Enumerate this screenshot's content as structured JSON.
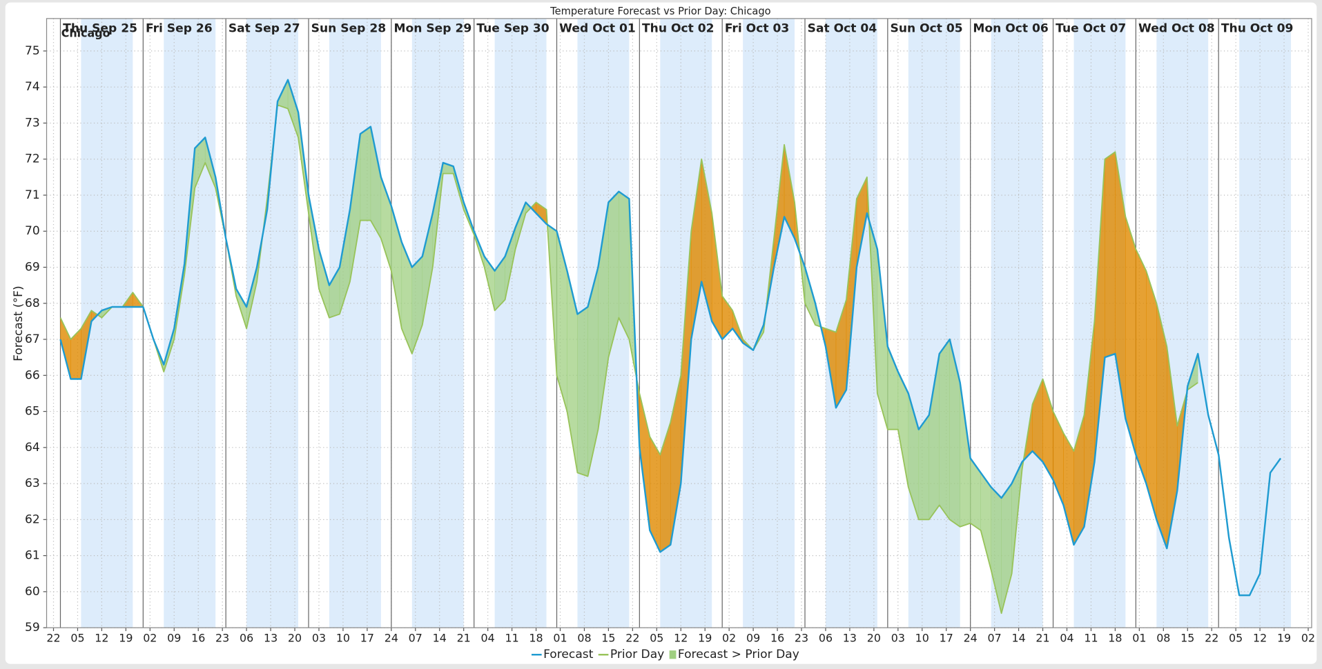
{
  "chart_data": {
    "type": "line",
    "title": "Temperature Forecast vs Prior Day: Chicago",
    "annotation": "Chicago",
    "ylabel": "Forecast (°F)",
    "x": [
      0,
      3,
      6,
      9,
      12,
      15,
      18,
      21,
      24,
      27,
      30,
      33,
      36,
      39,
      42,
      45,
      48,
      51,
      54,
      57,
      60,
      63,
      66,
      69,
      72,
      75,
      78,
      81,
      84,
      87,
      90,
      93,
      96,
      99,
      102,
      105,
      108,
      111,
      114,
      117,
      120,
      123,
      126,
      129,
      132,
      135,
      138,
      141,
      144,
      147,
      150,
      153,
      156,
      159,
      162,
      165,
      168,
      171,
      174,
      177,
      180,
      183,
      186,
      189,
      192,
      195,
      198,
      201,
      204,
      207,
      210,
      213,
      216,
      219,
      222,
      225,
      228,
      231,
      234,
      237,
      240,
      243,
      246,
      249,
      252,
      255,
      258,
      261,
      264,
      267,
      270,
      273,
      276,
      279,
      282,
      285,
      288,
      291,
      294,
      297,
      300,
      303,
      306,
      309,
      312,
      315,
      318,
      321,
      324,
      327,
      330,
      333,
      336,
      339,
      342,
      345,
      348,
      351,
      354
    ],
    "series": [
      {
        "name": "Forecast",
        "color": "#1f9bd1",
        "values": [
          67,
          65.9,
          65.9,
          67.5,
          67.8,
          67.9,
          67.9,
          67.9,
          67.9,
          67.0,
          66.3,
          67.3,
          69.1,
          72.3,
          72.6,
          71.5,
          69.8,
          68.4,
          67.9,
          69.0,
          70.6,
          73.6,
          74.2,
          73.3,
          71.0,
          69.5,
          68.5,
          69.0,
          70.6,
          72.7,
          72.9,
          71.5,
          70.7,
          69.7,
          69.0,
          69.3,
          70.5,
          71.9,
          71.8,
          70.8,
          70.0,
          69.3,
          68.9,
          69.3,
          70.1,
          70.8,
          70.5,
          70.2,
          70.0,
          68.9,
          67.7,
          67.9,
          69.0,
          70.8,
          71.1,
          70.9,
          64.0,
          61.7,
          61.1,
          61.3,
          63.0,
          67.0,
          68.6,
          67.5,
          67.0,
          67.3,
          66.9,
          66.7,
          67.4,
          69.0,
          70.4,
          69.8,
          69.0,
          68.0,
          66.8,
          65.1,
          65.6,
          69.0,
          70.5,
          69.5,
          66.8,
          66.1,
          65.5,
          64.5,
          64.9,
          66.6,
          67.0,
          65.8,
          63.7,
          63.3,
          62.9,
          62.6,
          63.0,
          63.6,
          63.9,
          63.6,
          63.1,
          62.4,
          61.3,
          61.8,
          63.6,
          66.5,
          66.6,
          64.8,
          63.8,
          63.0,
          62.0,
          61.2,
          62.8,
          65.7,
          66.6,
          64.9,
          63.8,
          61.5,
          59.9,
          59.9,
          60.5,
          63.3,
          63.7
        ]
      },
      {
        "name": "Prior Day",
        "color": "#98c35a",
        "values": [
          67.6,
          67.0,
          67.3,
          67.8,
          67.6,
          67.9,
          67.9,
          68.3,
          67.9,
          67.0,
          66.1,
          67.0,
          68.8,
          71.2,
          71.9,
          71.2,
          69.8,
          68.2,
          67.3,
          68.6,
          70.9,
          73.5,
          73.4,
          72.6,
          70.5,
          68.4,
          67.6,
          67.7,
          68.6,
          70.3,
          70.3,
          69.8,
          68.9,
          67.3,
          66.6,
          67.4,
          69.0,
          71.6,
          71.6,
          70.6,
          69.9,
          69.0,
          67.8,
          68.1,
          69.5,
          70.5,
          70.8,
          70.6,
          66.0,
          65.0,
          63.3,
          63.2,
          64.5,
          66.5,
          67.6,
          67.0,
          65.5,
          64.3,
          63.8,
          64.7,
          66.0,
          70.0,
          72.0,
          70.5,
          68.2,
          67.8,
          67.0,
          66.7,
          67.2,
          69.8,
          72.4,
          70.8,
          68.0,
          67.4,
          67.3,
          67.2,
          68.1,
          70.9,
          71.5,
          65.5,
          64.5,
          64.5,
          62.9,
          62.0,
          62.0,
          62.4,
          62.0,
          61.8,
          61.9,
          61.7,
          60.6,
          59.4,
          60.5,
          63.4,
          65.2,
          65.9,
          65.0,
          64.4,
          63.9,
          64.9,
          67.5,
          72.0,
          72.2,
          70.4,
          69.5,
          68.9,
          68.0,
          66.8,
          64.6,
          65.6,
          65.8,
          null,
          null,
          null,
          null,
          null,
          null,
          null,
          null
        ]
      }
    ],
    "fill": {
      "name": "Forecast > Prior Day",
      "color": "#9fcf80"
    },
    "below_fill_color": "#e08a00",
    "days": [
      {
        "label": "Thu Sep 25",
        "x": 0
      },
      {
        "label": "Fri Sep 26",
        "x": 24
      },
      {
        "label": "Sat Sep 27",
        "x": 48
      },
      {
        "label": "Sun Sep 28",
        "x": 72
      },
      {
        "label": "Mon Sep 29",
        "x": 96
      },
      {
        "label": "Tue Sep 30",
        "x": 120
      },
      {
        "label": "Wed Oct 01",
        "x": 144
      },
      {
        "label": "Thu Oct 02",
        "x": 168
      },
      {
        "label": "Fri Oct 03",
        "x": 192
      },
      {
        "label": "Sat Oct 04",
        "x": 216
      },
      {
        "label": "Sun Oct 05",
        "x": 240
      },
      {
        "label": "Mon Oct 06",
        "x": 264
      },
      {
        "label": "Tue Oct 07",
        "x": 288
      },
      {
        "label": "Wed Oct 08",
        "x": 312
      },
      {
        "label": "Thu Oct 09",
        "x": 336
      }
    ],
    "day_label_color": "#e8202a",
    "shaded_hours": [
      6,
      21
    ],
    "shade_color": "#ddecfb",
    "xlim": [
      -4,
      363
    ],
    "ylim": [
      59,
      75.9
    ],
    "xticks": [
      {
        "value": -2,
        "label": "22"
      },
      {
        "value": 5,
        "label": "05"
      },
      {
        "value": 12,
        "label": "12"
      },
      {
        "value": 19,
        "label": "19"
      },
      {
        "value": 26,
        "label": "02"
      },
      {
        "value": 33,
        "label": "09"
      },
      {
        "value": 40,
        "label": "16"
      },
      {
        "value": 47,
        "label": "23"
      },
      {
        "value": 54,
        "label": "06"
      },
      {
        "value": 61,
        "label": "13"
      },
      {
        "value": 68,
        "label": "20"
      },
      {
        "value": 75,
        "label": "03"
      },
      {
        "value": 82,
        "label": "10"
      },
      {
        "value": 89,
        "label": "17"
      },
      {
        "value": 96,
        "label": "24"
      },
      {
        "value": 103,
        "label": "07"
      },
      {
        "value": 110,
        "label": "14"
      },
      {
        "value": 117,
        "label": "21"
      },
      {
        "value": 124,
        "label": "04"
      },
      {
        "value": 131,
        "label": "11"
      },
      {
        "value": 138,
        "label": "18"
      },
      {
        "value": 145,
        "label": "01"
      },
      {
        "value": 152,
        "label": "08"
      },
      {
        "value": 159,
        "label": "15"
      },
      {
        "value": 166,
        "label": "22"
      },
      {
        "value": 173,
        "label": "05"
      },
      {
        "value": 180,
        "label": "12"
      },
      {
        "value": 187,
        "label": "19"
      },
      {
        "value": 194,
        "label": "02"
      },
      {
        "value": 201,
        "label": "09"
      },
      {
        "value": 208,
        "label": "16"
      },
      {
        "value": 215,
        "label": "23"
      },
      {
        "value": 222,
        "label": "06"
      },
      {
        "value": 229,
        "label": "13"
      },
      {
        "value": 236,
        "label": "20"
      },
      {
        "value": 243,
        "label": "03"
      },
      {
        "value": 250,
        "label": "10"
      },
      {
        "value": 257,
        "label": "17"
      },
      {
        "value": 264,
        "label": "24"
      },
      {
        "value": 271,
        "label": "07"
      },
      {
        "value": 278,
        "label": "14"
      },
      {
        "value": 285,
        "label": "21"
      },
      {
        "value": 292,
        "label": "04"
      },
      {
        "value": 299,
        "label": "11"
      },
      {
        "value": 306,
        "label": "18"
      },
      {
        "value": 313,
        "label": "01"
      },
      {
        "value": 320,
        "label": "08"
      },
      {
        "value": 327,
        "label": "15"
      },
      {
        "value": 334,
        "label": "22"
      },
      {
        "value": 341,
        "label": "05"
      },
      {
        "value": 348,
        "label": "12"
      },
      {
        "value": 355,
        "label": "19"
      },
      {
        "value": 362,
        "label": "02"
      }
    ],
    "yticks": [
      59,
      60,
      61,
      62,
      63,
      64,
      65,
      66,
      67,
      68,
      69,
      70,
      71,
      72,
      73,
      74,
      75
    ],
    "grid": true
  }
}
